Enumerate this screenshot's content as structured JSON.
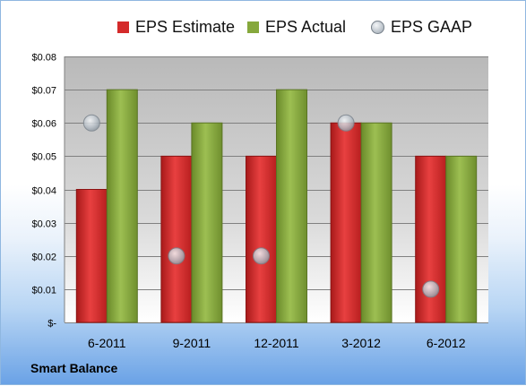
{
  "chart_data": {
    "type": "bar",
    "categories": [
      "6-2011",
      "9-2011",
      "12-2011",
      "3-2012",
      "6-2012"
    ],
    "series": [
      {
        "name": "EPS Estimate",
        "type": "bar",
        "color": "#d42a2a",
        "values": [
          0.04,
          0.05,
          0.05,
          0.06,
          0.05
        ]
      },
      {
        "name": "EPS Actual",
        "type": "bar",
        "color": "#86a83c",
        "values": [
          0.07,
          0.06,
          0.07,
          0.06,
          0.05
        ]
      },
      {
        "name": "EPS GAAP",
        "type": "scatter",
        "color": "#b8c0c8",
        "values": [
          0.06,
          0.02,
          0.02,
          0.06,
          0.01
        ]
      }
    ],
    "ylim": [
      0,
      0.08
    ],
    "yticks": [
      0,
      0.01,
      0.02,
      0.03,
      0.04,
      0.05,
      0.06,
      0.07,
      0.08
    ],
    "ytick_labels": [
      "$-",
      "$0.01",
      "$0.02",
      "$0.03",
      "$0.04",
      "$0.05",
      "$0.06",
      "$0.07",
      "$0.08"
    ],
    "grid": true,
    "legend_position": "top"
  },
  "footer": {
    "company": "Smart Balance"
  },
  "colors": {
    "plot_background": "#c8c8c8",
    "gridline": "#808080"
  }
}
